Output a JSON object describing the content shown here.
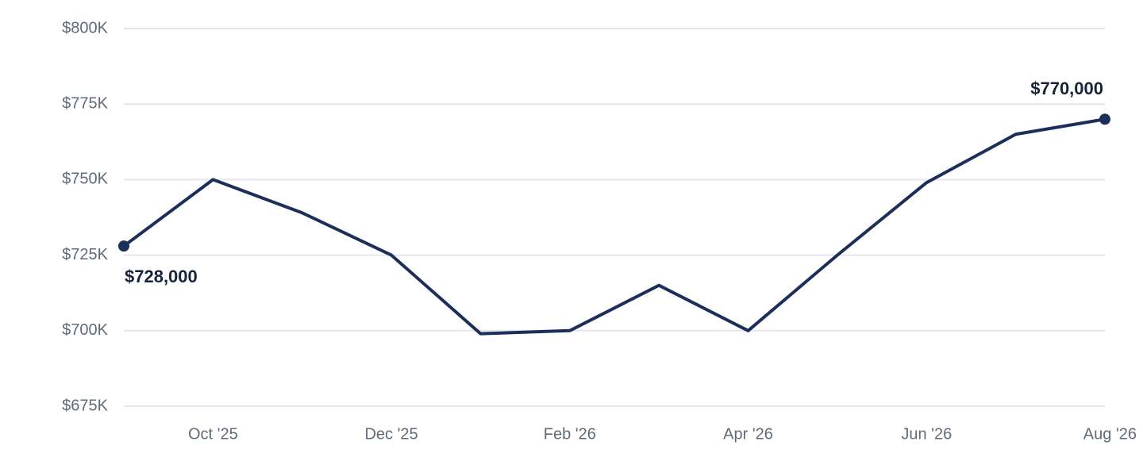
{
  "chart_data": {
    "type": "line",
    "categories": [
      null,
      "Oct '25",
      null,
      "Dec '25",
      null,
      "Feb '26",
      null,
      "Apr '26",
      null,
      "Jun '26",
      null,
      "Aug '26"
    ],
    "series": [
      {
        "color": "#1c2e5a",
        "values": [
          728000,
          750000,
          739000,
          725000,
          699000,
          700000,
          715000,
          700000,
          725000,
          749000,
          765000,
          770000
        ],
        "value_labels": [
          "$728,000",
          null,
          null,
          null,
          null,
          null,
          null,
          null,
          null,
          null,
          null,
          "$770,000"
        ]
      }
    ],
    "ylim": [
      675000,
      800000
    ],
    "yticks": [
      {
        "value": 675000,
        "label": "$675K"
      },
      {
        "value": 700000,
        "label": "$700K"
      },
      {
        "value": 725000,
        "label": "$725K"
      },
      {
        "value": 750000,
        "label": "$750K"
      },
      {
        "value": 775000,
        "label": "$775K"
      },
      {
        "value": 800000,
        "label": "$800K"
      }
    ],
    "grid": true
  }
}
